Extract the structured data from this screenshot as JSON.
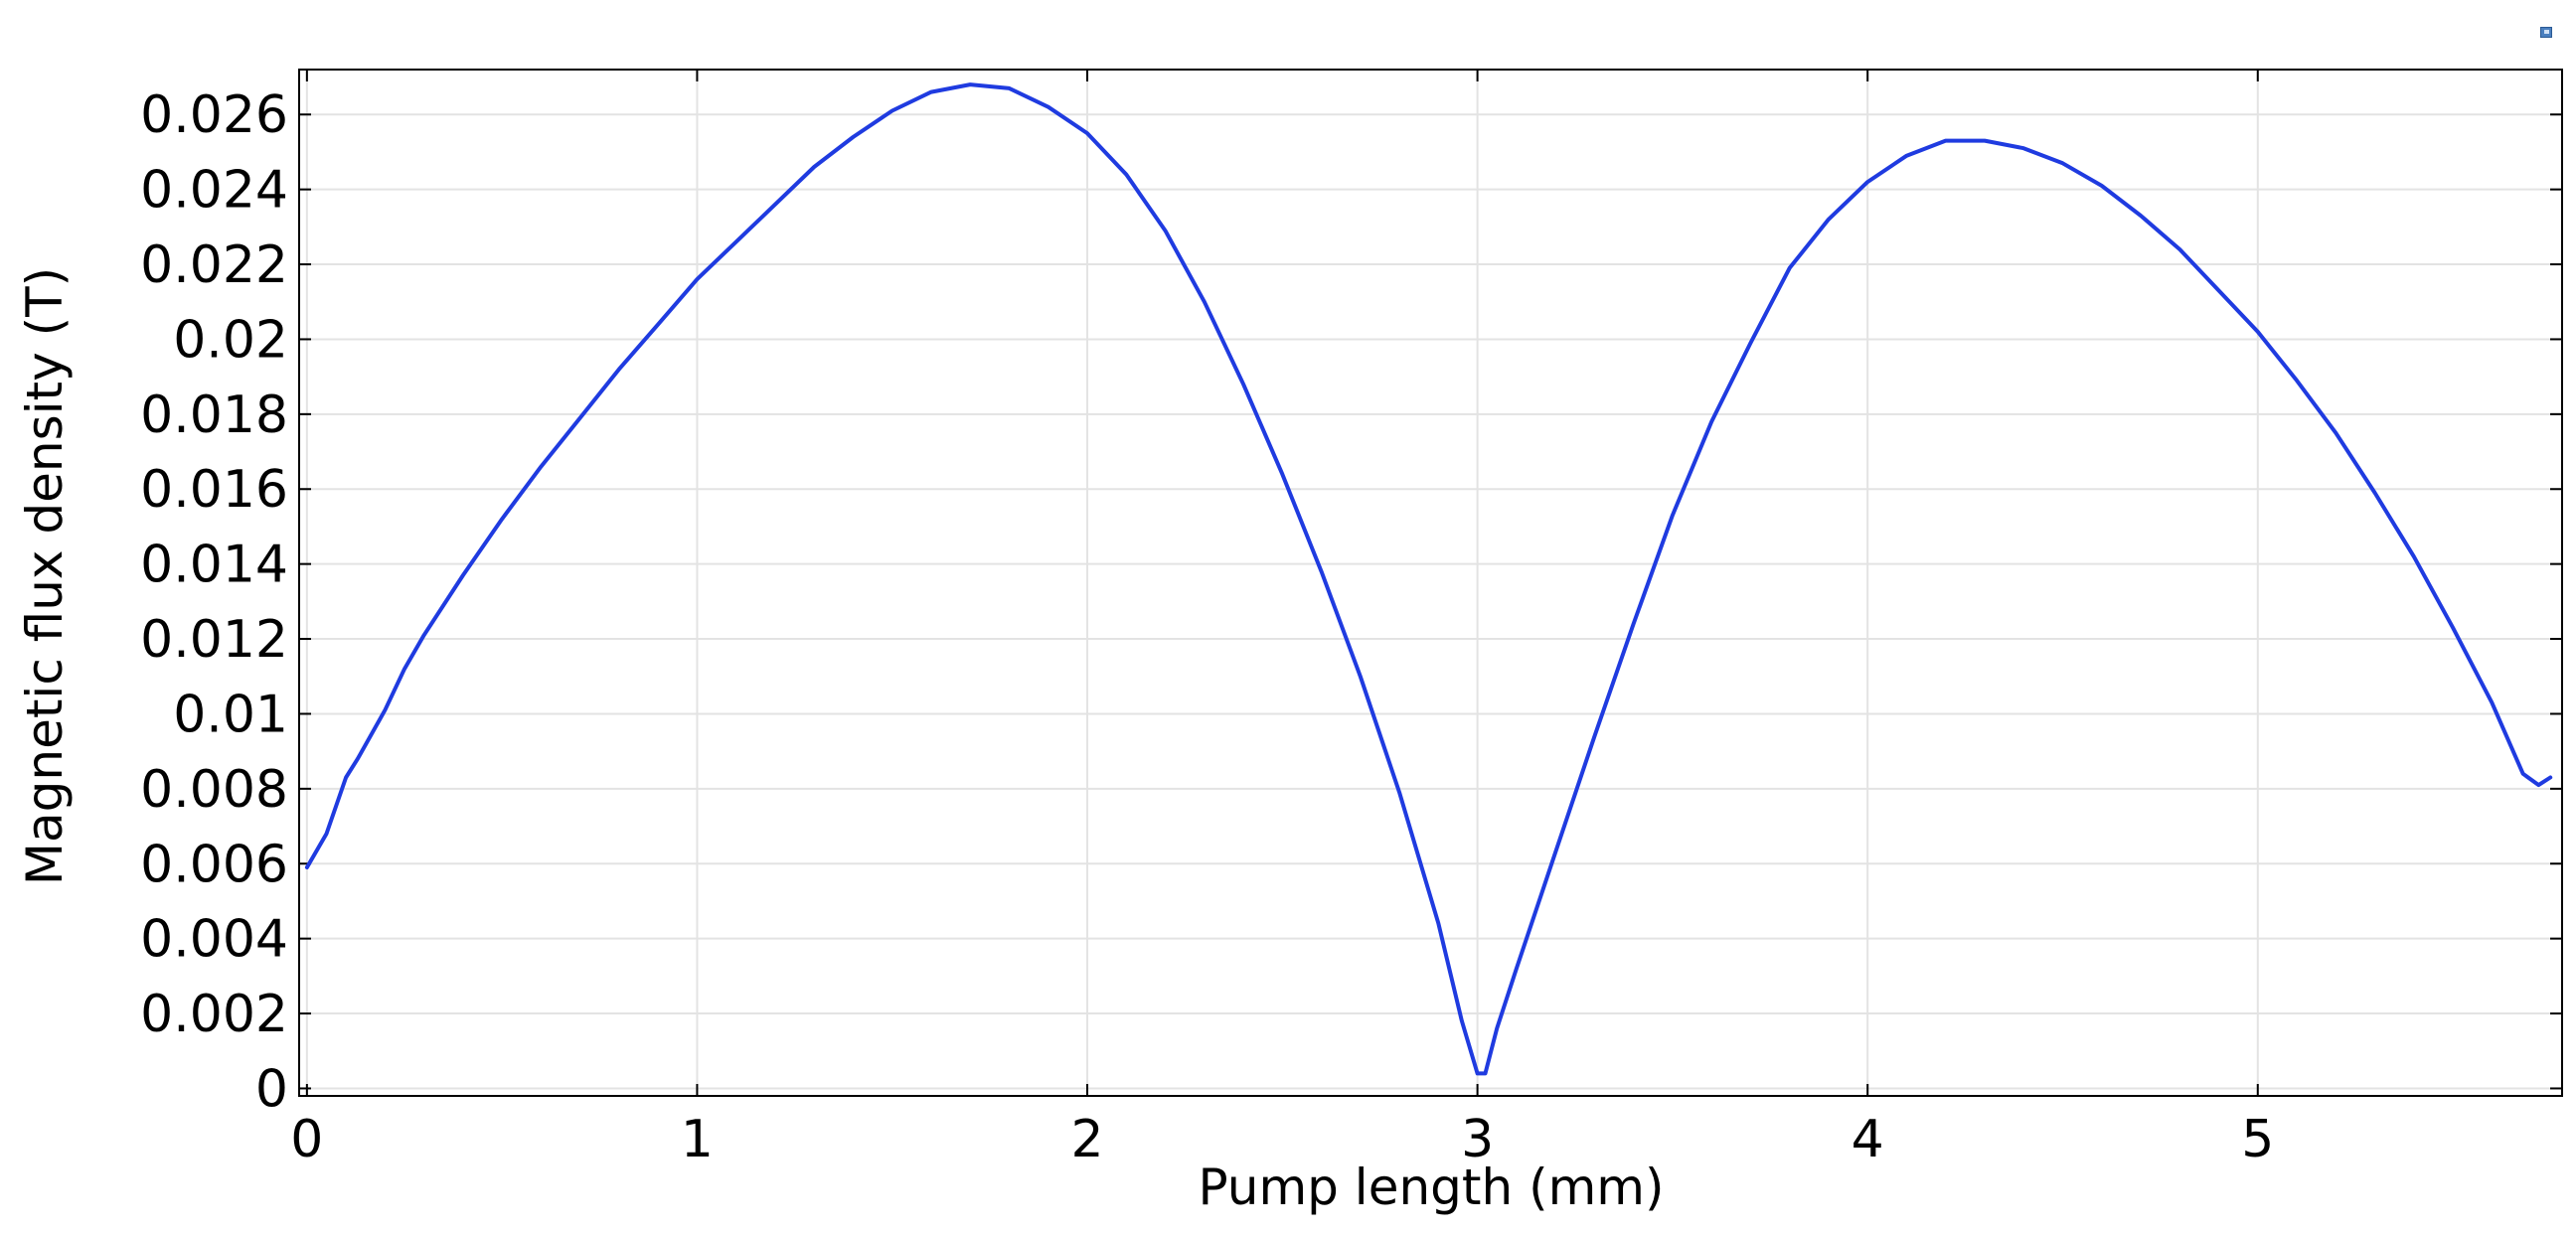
{
  "chart_data": {
    "type": "line",
    "title": "",
    "xlabel": "Pump length (mm)",
    "ylabel": "Magnetic flux density (T)",
    "xlim": [
      -0.02,
      5.78
    ],
    "ylim": [
      -0.0002,
      0.0272
    ],
    "grid": true,
    "legend": "none",
    "x_ticks": [
      0,
      1,
      2,
      3,
      4,
      5
    ],
    "x_tick_labels": [
      "0",
      "1",
      "2",
      "3",
      "4",
      "5"
    ],
    "y_ticks": [
      0,
      0.002,
      0.004,
      0.006,
      0.008,
      0.01,
      0.012,
      0.014,
      0.016,
      0.018,
      0.02,
      0.022,
      0.024,
      0.026
    ],
    "y_tick_labels": [
      "0",
      "0.002",
      "0.004",
      "0.006",
      "0.008",
      "0.01",
      "0.012",
      "0.014",
      "0.016",
      "0.018",
      "0.02",
      "0.022",
      "0.024",
      "0.026"
    ],
    "series": [
      {
        "color": "#1f3be0",
        "points": [
          [
            0.0,
            0.0059
          ],
          [
            0.05,
            0.0068
          ],
          [
            0.1,
            0.0083
          ],
          [
            0.13,
            0.0088
          ],
          [
            0.2,
            0.0101
          ],
          [
            0.25,
            0.0112
          ],
          [
            0.3,
            0.0121
          ],
          [
            0.4,
            0.0137
          ],
          [
            0.5,
            0.0152
          ],
          [
            0.6,
            0.0166
          ],
          [
            0.7,
            0.0179
          ],
          [
            0.8,
            0.0192
          ],
          [
            0.9,
            0.0204
          ],
          [
            1.0,
            0.0216
          ],
          [
            1.1,
            0.0226
          ],
          [
            1.2,
            0.0236
          ],
          [
            1.3,
            0.0246
          ],
          [
            1.4,
            0.0254
          ],
          [
            1.5,
            0.0261
          ],
          [
            1.6,
            0.0266
          ],
          [
            1.7,
            0.0268
          ],
          [
            1.8,
            0.0267
          ],
          [
            1.9,
            0.0262
          ],
          [
            2.0,
            0.0255
          ],
          [
            2.1,
            0.0244
          ],
          [
            2.2,
            0.0229
          ],
          [
            2.3,
            0.021
          ],
          [
            2.4,
            0.0188
          ],
          [
            2.5,
            0.0164
          ],
          [
            2.6,
            0.0138
          ],
          [
            2.7,
            0.011
          ],
          [
            2.8,
            0.0079
          ],
          [
            2.9,
            0.0044
          ],
          [
            2.96,
            0.0018
          ],
          [
            3.0,
            0.0004
          ],
          [
            3.02,
            0.0004
          ],
          [
            3.05,
            0.0016
          ],
          [
            3.1,
            0.0032
          ],
          [
            3.2,
            0.0063
          ],
          [
            3.3,
            0.0094
          ],
          [
            3.4,
            0.0124
          ],
          [
            3.5,
            0.0153
          ],
          [
            3.6,
            0.0178
          ],
          [
            3.7,
            0.0199
          ],
          [
            3.8,
            0.0219
          ],
          [
            3.9,
            0.0232
          ],
          [
            4.0,
            0.0242
          ],
          [
            4.1,
            0.0249
          ],
          [
            4.2,
            0.0253
          ],
          [
            4.3,
            0.0253
          ],
          [
            4.4,
            0.0251
          ],
          [
            4.5,
            0.0247
          ],
          [
            4.6,
            0.0241
          ],
          [
            4.7,
            0.0233
          ],
          [
            4.8,
            0.0224
          ],
          [
            4.9,
            0.0213
          ],
          [
            5.0,
            0.0202
          ],
          [
            5.1,
            0.0189
          ],
          [
            5.2,
            0.0175
          ],
          [
            5.3,
            0.0159
          ],
          [
            5.4,
            0.0142
          ],
          [
            5.5,
            0.0123
          ],
          [
            5.6,
            0.0103
          ],
          [
            5.68,
            0.0084
          ],
          [
            5.72,
            0.0081
          ],
          [
            5.75,
            0.0083
          ]
        ]
      }
    ]
  }
}
